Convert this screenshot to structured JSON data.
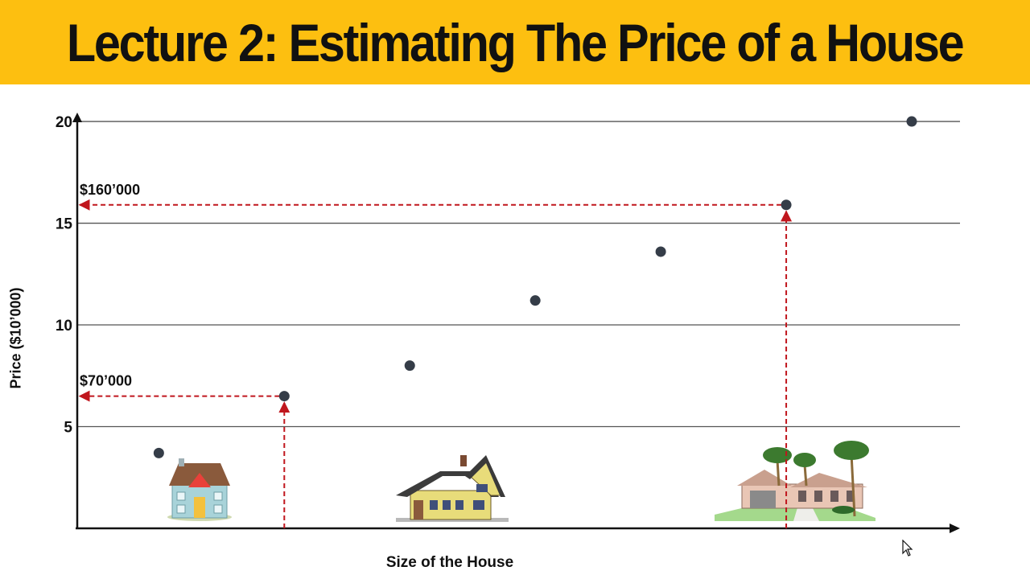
{
  "title": "Lecture 2: Estimating The Price of a House",
  "chart_data": {
    "type": "scatter",
    "title": "Lecture 2: Estimating The Price of a House",
    "xlabel": "Size of the House",
    "ylabel": "Price ($10’000)",
    "yticks": [
      "5",
      "10",
      "15",
      "20"
    ],
    "ylim": [
      0,
      20.2
    ],
    "grid": true,
    "points": [
      {
        "x": 1,
        "y": 3.7
      },
      {
        "x": 2,
        "y": 6.5
      },
      {
        "x": 3,
        "y": 8.0
      },
      {
        "x": 4,
        "y": 11.2
      },
      {
        "x": 5,
        "y": 13.6
      },
      {
        "x": 6,
        "y": 15.9
      },
      {
        "x": 7,
        "y": 20.0
      }
    ],
    "annotations": [
      {
        "label": "$70’000",
        "point_index": 1
      },
      {
        "label": "$160’000",
        "point_index": 5
      }
    ],
    "accent_color": "#c0161d",
    "marker_color": "#353d48"
  },
  "illustrations": [
    "small-cottage-icon",
    "wooden-house-icon",
    "villa-with-palm-trees-icon"
  ]
}
